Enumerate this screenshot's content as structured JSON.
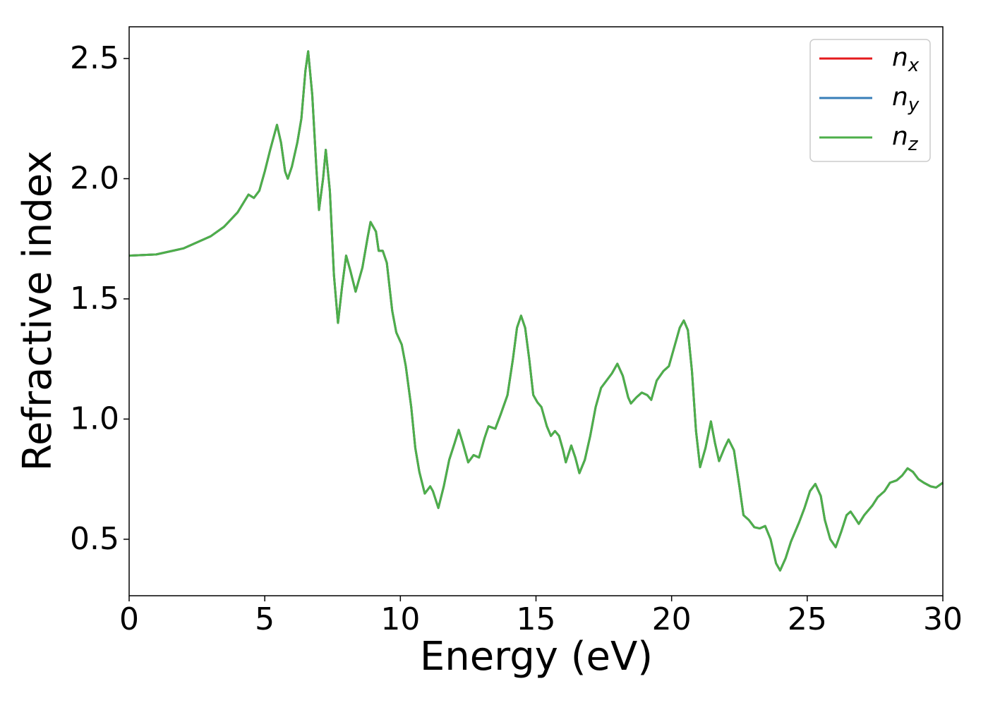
{
  "chart_data": {
    "type": "line",
    "xlabel": "Energy (eV)",
    "ylabel": "Refractive index",
    "x": [
      0,
      1,
      2,
      3,
      3.5,
      4,
      4.4,
      4.6,
      4.8,
      5.0,
      5.2,
      5.45,
      5.6,
      5.75,
      5.85,
      6.0,
      6.2,
      6.35,
      6.5,
      6.6,
      6.75,
      6.9,
      7.0,
      7.15,
      7.25,
      7.4,
      7.55,
      7.7,
      7.85,
      8.0,
      8.15,
      8.35,
      8.6,
      8.8,
      8.9,
      9.1,
      9.2,
      9.35,
      9.5,
      9.7,
      9.85,
      10.05,
      10.2,
      10.4,
      10.55,
      10.7,
      10.9,
      11.1,
      11.2,
      11.4,
      11.6,
      11.8,
      12.0,
      12.15,
      12.3,
      12.5,
      12.7,
      12.9,
      13.1,
      13.25,
      13.5,
      13.7,
      13.95,
      14.15,
      14.3,
      14.45,
      14.6,
      14.75,
      14.9,
      15.05,
      15.2,
      15.4,
      15.55,
      15.7,
      15.85,
      16.0,
      16.1,
      16.3,
      16.45,
      16.6,
      16.8,
      17.0,
      17.2,
      17.4,
      17.6,
      17.8,
      18.0,
      18.2,
      18.4,
      18.5,
      18.7,
      18.9,
      19.1,
      19.25,
      19.45,
      19.7,
      19.9,
      20.1,
      20.3,
      20.45,
      20.6,
      20.75,
      20.9,
      21.05,
      21.25,
      21.45,
      21.6,
      21.75,
      21.95,
      22.1,
      22.3,
      22.5,
      22.65,
      22.85,
      23.05,
      23.25,
      23.45,
      23.65,
      23.85,
      24.0,
      24.2,
      24.4,
      24.7,
      24.9,
      25.1,
      25.3,
      25.5,
      25.65,
      25.85,
      26.05,
      26.25,
      26.45,
      26.6,
      26.75,
      26.9,
      27.1,
      27.4,
      27.6,
      27.85,
      28.05,
      28.3,
      28.5,
      28.7,
      28.9,
      29.1,
      29.3,
      29.55,
      29.75,
      30
    ],
    "series": [
      {
        "name": "nx",
        "color": "#e41a1c",
        "values": [
          1.68,
          1.685,
          1.71,
          1.76,
          1.8,
          1.86,
          1.934,
          1.92,
          1.95,
          2.03,
          2.12,
          2.224,
          2.15,
          2.03,
          2.0,
          2.05,
          2.15,
          2.25,
          2.45,
          2.53,
          2.35,
          2.05,
          1.87,
          2.0,
          2.12,
          1.95,
          1.6,
          1.4,
          1.55,
          1.68,
          1.62,
          1.53,
          1.63,
          1.76,
          1.82,
          1.78,
          1.7,
          1.7,
          1.65,
          1.45,
          1.36,
          1.31,
          1.22,
          1.05,
          0.88,
          0.78,
          0.69,
          0.72,
          0.7,
          0.63,
          0.72,
          0.83,
          0.9,
          0.955,
          0.9,
          0.82,
          0.85,
          0.84,
          0.92,
          0.97,
          0.96,
          1.02,
          1.1,
          1.25,
          1.38,
          1.43,
          1.38,
          1.25,
          1.1,
          1.07,
          1.05,
          0.97,
          0.93,
          0.95,
          0.93,
          0.87,
          0.82,
          0.89,
          0.84,
          0.775,
          0.83,
          0.93,
          1.05,
          1.13,
          1.16,
          1.19,
          1.23,
          1.18,
          1.09,
          1.065,
          1.09,
          1.11,
          1.1,
          1.08,
          1.16,
          1.2,
          1.22,
          1.3,
          1.38,
          1.41,
          1.37,
          1.2,
          0.95,
          0.8,
          0.88,
          0.99,
          0.9,
          0.825,
          0.88,
          0.915,
          0.87,
          0.72,
          0.6,
          0.58,
          0.55,
          0.545,
          0.555,
          0.5,
          0.4,
          0.37,
          0.42,
          0.49,
          0.57,
          0.63,
          0.7,
          0.73,
          0.68,
          0.58,
          0.5,
          0.467,
          0.53,
          0.6,
          0.615,
          0.59,
          0.564,
          0.6,
          0.64,
          0.675,
          0.7,
          0.735,
          0.745,
          0.765,
          0.795,
          0.78,
          0.75,
          0.735,
          0.72,
          0.715,
          0.735
        ]
      },
      {
        "name": "ny",
        "color": "#377eb8",
        "values": [
          1.68,
          1.685,
          1.71,
          1.76,
          1.8,
          1.86,
          1.934,
          1.92,
          1.95,
          2.03,
          2.12,
          2.224,
          2.15,
          2.03,
          2.0,
          2.05,
          2.15,
          2.25,
          2.45,
          2.53,
          2.35,
          2.05,
          1.87,
          2.0,
          2.12,
          1.95,
          1.6,
          1.4,
          1.55,
          1.68,
          1.62,
          1.53,
          1.63,
          1.76,
          1.82,
          1.78,
          1.7,
          1.7,
          1.65,
          1.45,
          1.36,
          1.31,
          1.22,
          1.05,
          0.88,
          0.78,
          0.69,
          0.72,
          0.7,
          0.63,
          0.72,
          0.83,
          0.9,
          0.955,
          0.9,
          0.82,
          0.85,
          0.84,
          0.92,
          0.97,
          0.96,
          1.02,
          1.1,
          1.25,
          1.38,
          1.43,
          1.38,
          1.25,
          1.1,
          1.07,
          1.05,
          0.97,
          0.93,
          0.95,
          0.93,
          0.87,
          0.82,
          0.89,
          0.84,
          0.775,
          0.83,
          0.93,
          1.05,
          1.13,
          1.16,
          1.19,
          1.23,
          1.18,
          1.09,
          1.065,
          1.09,
          1.11,
          1.1,
          1.08,
          1.16,
          1.2,
          1.22,
          1.3,
          1.38,
          1.41,
          1.37,
          1.2,
          0.95,
          0.8,
          0.88,
          0.99,
          0.9,
          0.825,
          0.88,
          0.915,
          0.87,
          0.72,
          0.6,
          0.58,
          0.55,
          0.545,
          0.555,
          0.5,
          0.4,
          0.37,
          0.42,
          0.49,
          0.57,
          0.63,
          0.7,
          0.73,
          0.68,
          0.58,
          0.5,
          0.467,
          0.53,
          0.6,
          0.615,
          0.59,
          0.564,
          0.6,
          0.64,
          0.675,
          0.7,
          0.735,
          0.745,
          0.765,
          0.795,
          0.78,
          0.75,
          0.735,
          0.72,
          0.715,
          0.735
        ]
      },
      {
        "name": "nz",
        "color": "#4daf4a",
        "values": [
          1.68,
          1.685,
          1.71,
          1.76,
          1.8,
          1.86,
          1.934,
          1.92,
          1.95,
          2.03,
          2.12,
          2.224,
          2.15,
          2.03,
          2.0,
          2.05,
          2.15,
          2.25,
          2.45,
          2.53,
          2.35,
          2.05,
          1.87,
          2.0,
          2.12,
          1.95,
          1.6,
          1.4,
          1.55,
          1.68,
          1.62,
          1.53,
          1.63,
          1.76,
          1.82,
          1.78,
          1.7,
          1.7,
          1.65,
          1.45,
          1.36,
          1.31,
          1.22,
          1.05,
          0.88,
          0.78,
          0.69,
          0.72,
          0.7,
          0.63,
          0.72,
          0.83,
          0.9,
          0.955,
          0.9,
          0.82,
          0.85,
          0.84,
          0.92,
          0.97,
          0.96,
          1.02,
          1.1,
          1.25,
          1.38,
          1.43,
          1.38,
          1.25,
          1.1,
          1.07,
          1.05,
          0.97,
          0.93,
          0.95,
          0.93,
          0.87,
          0.82,
          0.89,
          0.84,
          0.775,
          0.83,
          0.93,
          1.05,
          1.13,
          1.16,
          1.19,
          1.23,
          1.18,
          1.09,
          1.065,
          1.09,
          1.11,
          1.1,
          1.08,
          1.16,
          1.2,
          1.22,
          1.3,
          1.38,
          1.41,
          1.37,
          1.2,
          0.95,
          0.8,
          0.88,
          0.99,
          0.9,
          0.825,
          0.88,
          0.915,
          0.87,
          0.72,
          0.6,
          0.58,
          0.55,
          0.545,
          0.555,
          0.5,
          0.4,
          0.37,
          0.42,
          0.49,
          0.57,
          0.63,
          0.7,
          0.73,
          0.68,
          0.58,
          0.5,
          0.467,
          0.53,
          0.6,
          0.615,
          0.59,
          0.564,
          0.6,
          0.64,
          0.675,
          0.7,
          0.735,
          0.745,
          0.765,
          0.795,
          0.78,
          0.75,
          0.735,
          0.72,
          0.715,
          0.735
        ]
      }
    ],
    "xlim": [
      0,
      30
    ],
    "xticks": [
      0,
      5,
      10,
      15,
      20,
      25,
      30
    ],
    "ylim": [
      0.265,
      2.632
    ],
    "yticks": [
      0.5,
      {
        "value": 1,
        "label": "1.0"
      },
      1.5,
      {
        "value": 2,
        "label": "2.0"
      },
      2.5
    ],
    "grid": false,
    "legend": "upper right"
  }
}
